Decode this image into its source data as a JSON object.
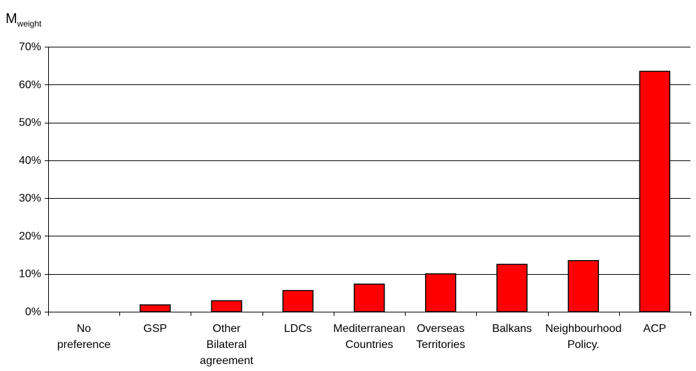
{
  "chart_data": {
    "type": "bar",
    "ylabel": "M",
    "ylabel_subscript": "weight",
    "categories": [
      [
        "No",
        "preference"
      ],
      [
        "GSP"
      ],
      [
        "Other",
        "Bilateral",
        "agreement"
      ],
      [
        "LDCs"
      ],
      [
        "Mediterranean",
        "Countries"
      ],
      [
        "Overseas",
        "Territories"
      ],
      [
        "Balkans"
      ],
      [
        "Neighbourhood",
        "Policy."
      ],
      [
        "ACP"
      ]
    ],
    "values": [
      0,
      1.8,
      2.9,
      5.6,
      7.3,
      10.0,
      12.5,
      13.5,
      63.5
    ],
    "ylim": [
      0,
      70
    ],
    "yticks": [
      {
        "value": 0,
        "label": "0%"
      },
      {
        "value": 10,
        "label": "10%"
      },
      {
        "value": 20,
        "label": "20%"
      },
      {
        "value": 30,
        "label": "30%"
      },
      {
        "value": 40,
        "label": "40%"
      },
      {
        "value": 50,
        "label": "50%"
      },
      {
        "value": 60,
        "label": "60%"
      },
      {
        "value": 70,
        "label": "70%"
      }
    ],
    "grid": true,
    "legend": "none",
    "bar_color": "#ff0000",
    "bar_edge_color": "#000000"
  }
}
